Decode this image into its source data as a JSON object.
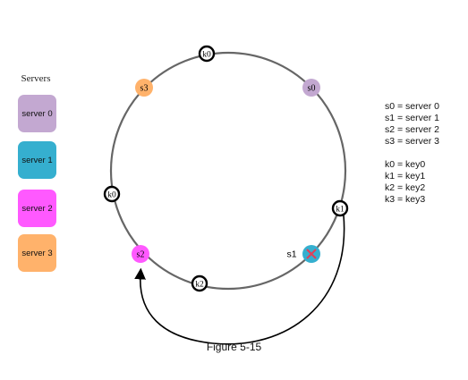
{
  "legend": {
    "title": "Servers",
    "servers": [
      {
        "label": "server 0",
        "color": "#C3A8D1"
      },
      {
        "label": "server 1",
        "color": "#35AFCF"
      },
      {
        "label": "server 2",
        "color": "#FF59FF"
      },
      {
        "label": "server 3",
        "color": "#FFB26B"
      }
    ]
  },
  "ring_nodes": {
    "s0": {
      "label": "s0",
      "color": "#C3A8D1"
    },
    "s1": {
      "label": "s1",
      "color": "#35AFCF",
      "removed_mark_color": "#E0405A"
    },
    "s2": {
      "label": "s2",
      "color": "#FF59FF"
    },
    "s3": {
      "label": "s3",
      "color": "#FFB26B"
    }
  },
  "ring_keys": {
    "k0_top": "k0",
    "k0_left": "k0",
    "k1": "k1",
    "k2": "k2"
  },
  "mappings": {
    "servers": [
      "s0 = server 0",
      "s1 = server 1",
      "s2 = server 2",
      "s3 = server 3"
    ],
    "keys": [
      "k0 = key0",
      "k1 = key1",
      "k2 = key2",
      "k3 = key3"
    ]
  },
  "caption": "Figure 5-15",
  "colors": {
    "ring": "#666666",
    "arrow": "#000000"
  }
}
